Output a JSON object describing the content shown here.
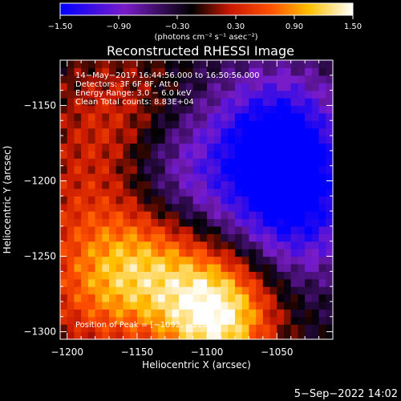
{
  "chart_data": {
    "type": "heatmap",
    "title": "Reconstructed RHESSI Image",
    "xlabel": "Heliocentric X (arcsec)",
    "ylabel": "Heliocentric Y (arcsec)",
    "xlim": [
      -1205,
      -1010
    ],
    "ylim": [
      -1305,
      -1120
    ],
    "x_ticks": [
      -1200,
      -1150,
      -1100,
      -1050
    ],
    "y_ticks": [
      -1150,
      -1200,
      -1250,
      -1300
    ],
    "x_tick_labels": [
      "−1200",
      "−1150",
      "−1100",
      "−1050"
    ],
    "y_tick_labels": [
      "−1150",
      "−1200",
      "−1250",
      "−1300"
    ],
    "colorbar": {
      "min": -1.5,
      "max": 1.5,
      "tick_values": [
        -1.5,
        -0.9,
        -0.3,
        0.3,
        0.9,
        1.5
      ],
      "tick_labels": [
        "−1.50",
        "−0.90",
        "−0.30",
        "0.30",
        "0.90",
        "1.50"
      ],
      "unit_text": "(photons cm⁻² s⁻¹ asec⁻²)",
      "colors": [
        "#0000ff",
        "#7a1cc8",
        "#000000",
        "#c81800",
        "#ff5000",
        "#ffc000",
        "#ffffff"
      ]
    },
    "annotations": [
      "14−May−2017 16:44:56.000 to 16:50:56.000",
      "Detectors: 3F 6F 8F, Att 0",
      "Energy Range: 3.0 − 6.0 keV",
      "Clean    Total counts: 8.83E+04",
      "Position of Peak = [−1092, −1289]"
    ],
    "intensity_features": [
      {
        "x": -1092,
        "y": -1289,
        "value": 1.5,
        "label": "peak"
      },
      {
        "x": -1140,
        "y": -1255,
        "value": 0.95
      },
      {
        "x": -1180,
        "y": -1272,
        "value": 0.6
      },
      {
        "x": -1165,
        "y": -1155,
        "value": 0.5
      },
      {
        "x": -1190,
        "y": -1210,
        "value": 0.35
      },
      {
        "x": -1050,
        "y": -1175,
        "value": -1.3
      },
      {
        "x": -1035,
        "y": -1220,
        "value": -0.9
      },
      {
        "x": -1120,
        "y": -1200,
        "value": -0.6
      }
    ]
  },
  "footer": {
    "date": "5−Sep−2022 14:02"
  }
}
